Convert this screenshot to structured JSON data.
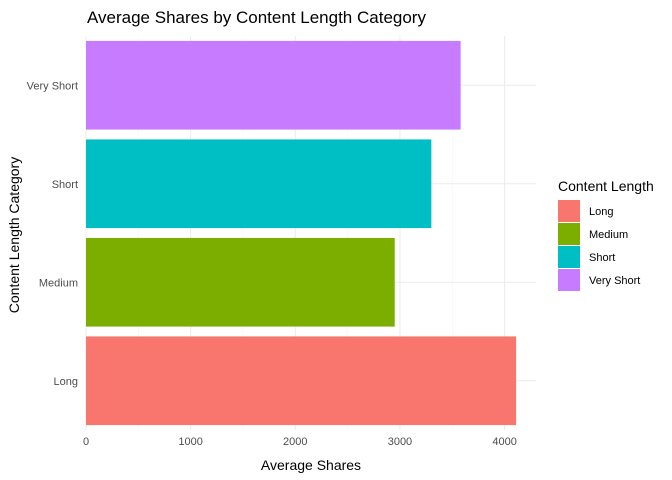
{
  "chart_data": {
    "type": "bar",
    "orientation": "horizontal",
    "title": "Average Shares by Content Length Category",
    "xlabel": "Average Shares",
    "ylabel": "Content Length Category",
    "categories": [
      "Long",
      "Medium",
      "Short",
      "Very Short"
    ],
    "values": [
      4110,
      2950,
      3300,
      3580
    ],
    "colors": [
      "#F8766D",
      "#7CAE00",
      "#00BFC4",
      "#C77CFF"
    ],
    "xlim": [
      0,
      4300
    ],
    "x_ticks": [
      0,
      1000,
      2000,
      3000,
      4000
    ],
    "x_tick_labels": [
      "0",
      "1000",
      "2000",
      "3000",
      "4000"
    ],
    "grid": true,
    "legend": {
      "title": "Content Length",
      "position": "right",
      "items": [
        "Long",
        "Medium",
        "Short",
        "Very Short"
      ]
    }
  }
}
